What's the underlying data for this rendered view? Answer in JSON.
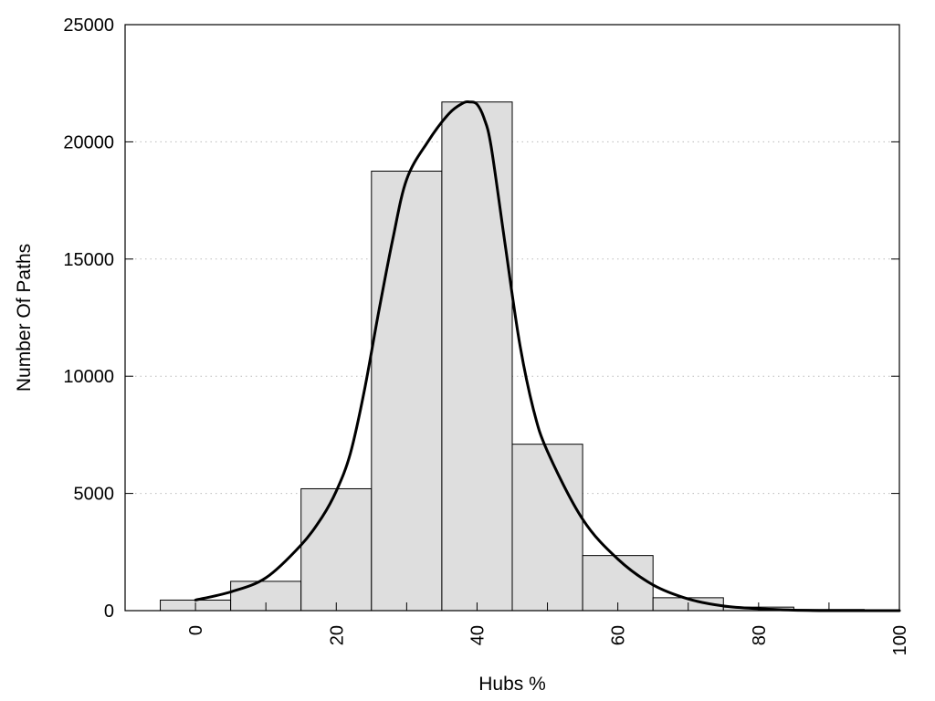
{
  "chart_data": {
    "type": "bar",
    "title": "",
    "xlabel": "Hubs %",
    "ylabel": "Number Of Paths",
    "xlim": [
      -10,
      100
    ],
    "ylim": [
      0,
      25000
    ],
    "x_ticks": [
      0,
      20,
      40,
      60,
      80,
      100
    ],
    "y_ticks": [
      0,
      5000,
      10000,
      15000,
      20000,
      25000
    ],
    "grid": "horizontal dotted",
    "bar_width": 10,
    "bars": {
      "x": [
        0,
        10,
        20,
        30,
        40,
        50,
        60,
        70,
        80,
        90
      ],
      "values": [
        450,
        1250,
        5200,
        18750,
        21700,
        7100,
        2350,
        550,
        150,
        50
      ]
    },
    "curve": {
      "x": [
        0,
        5,
        10,
        15,
        18,
        20,
        22,
        24,
        26,
        28,
        30,
        33,
        36,
        38,
        39,
        40,
        41,
        42,
        44,
        46,
        48,
        50,
        55,
        60,
        65,
        70,
        75,
        80,
        85,
        90,
        95,
        100
      ],
      "y": [
        450,
        800,
        1400,
        2800,
        4000,
        5100,
        6700,
        9400,
        12700,
        15800,
        18400,
        20000,
        21200,
        21650,
        21700,
        21600,
        21000,
        19800,
        15600,
        11500,
        8600,
        6800,
        3900,
        2200,
        1100,
        500,
        200,
        80,
        20,
        0,
        0,
        0
      ]
    },
    "colors": {
      "bar_fill": "#dedede",
      "bar_stroke": "#000000",
      "curve": "#000000",
      "grid": "#bbbbbb"
    }
  }
}
